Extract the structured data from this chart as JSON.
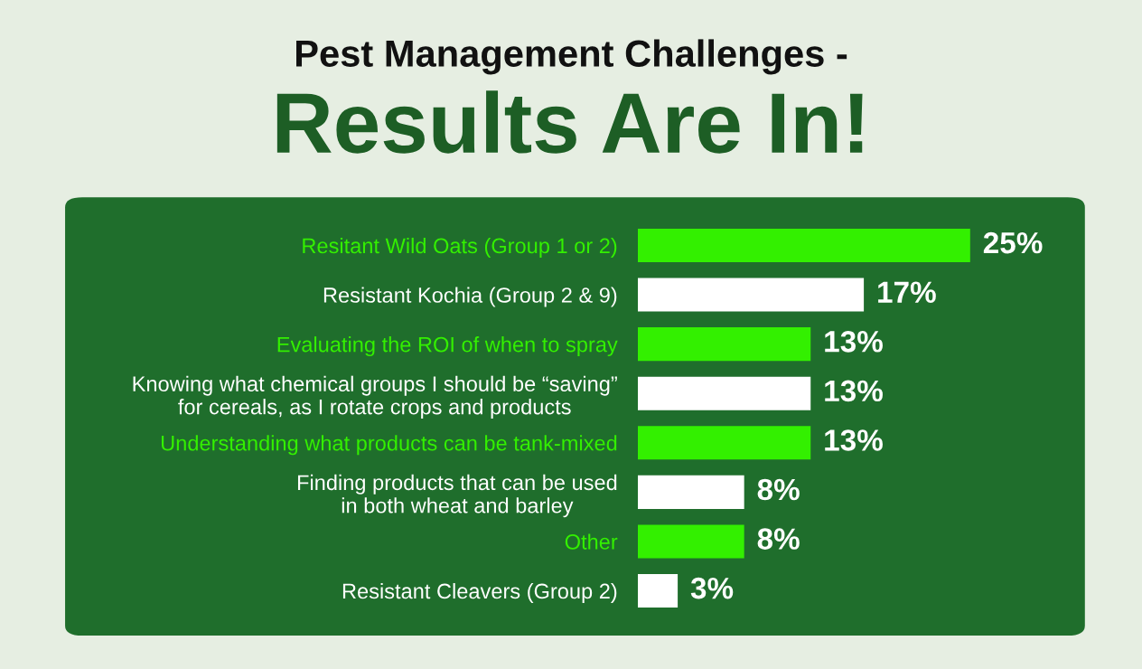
{
  "chart_data": {
    "type": "bar",
    "orientation": "horizontal",
    "title": "Pest Management Challenges -",
    "subtitle": "Results Are In!",
    "categories": [
      "Resitant Wild Oats (Group 1 or 2)",
      "Resistant Kochia (Group 2 & 9)",
      "Evaluating the ROI of when to spray",
      "Knowing what chemical groups I should be “saving”\nfor cereals, as I rotate crops and products",
      "Understanding what products can be tank-mixed",
      "Finding products that can be used\nin both wheat and barley",
      "Other",
      "Resistant Cleavers (Group 2)"
    ],
    "values": [
      25,
      17,
      13,
      13,
      13,
      8,
      8,
      3
    ],
    "colors": [
      "#33f000",
      "#ffffff",
      "#33f000",
      "#ffffff",
      "#33f000",
      "#ffffff",
      "#33f000",
      "#ffffff"
    ],
    "value_labels": [
      "25%",
      "17%",
      "13%",
      "13%",
      "13%",
      "8%",
      "8%",
      "3%"
    ],
    "grid": false,
    "legend": false
  }
}
